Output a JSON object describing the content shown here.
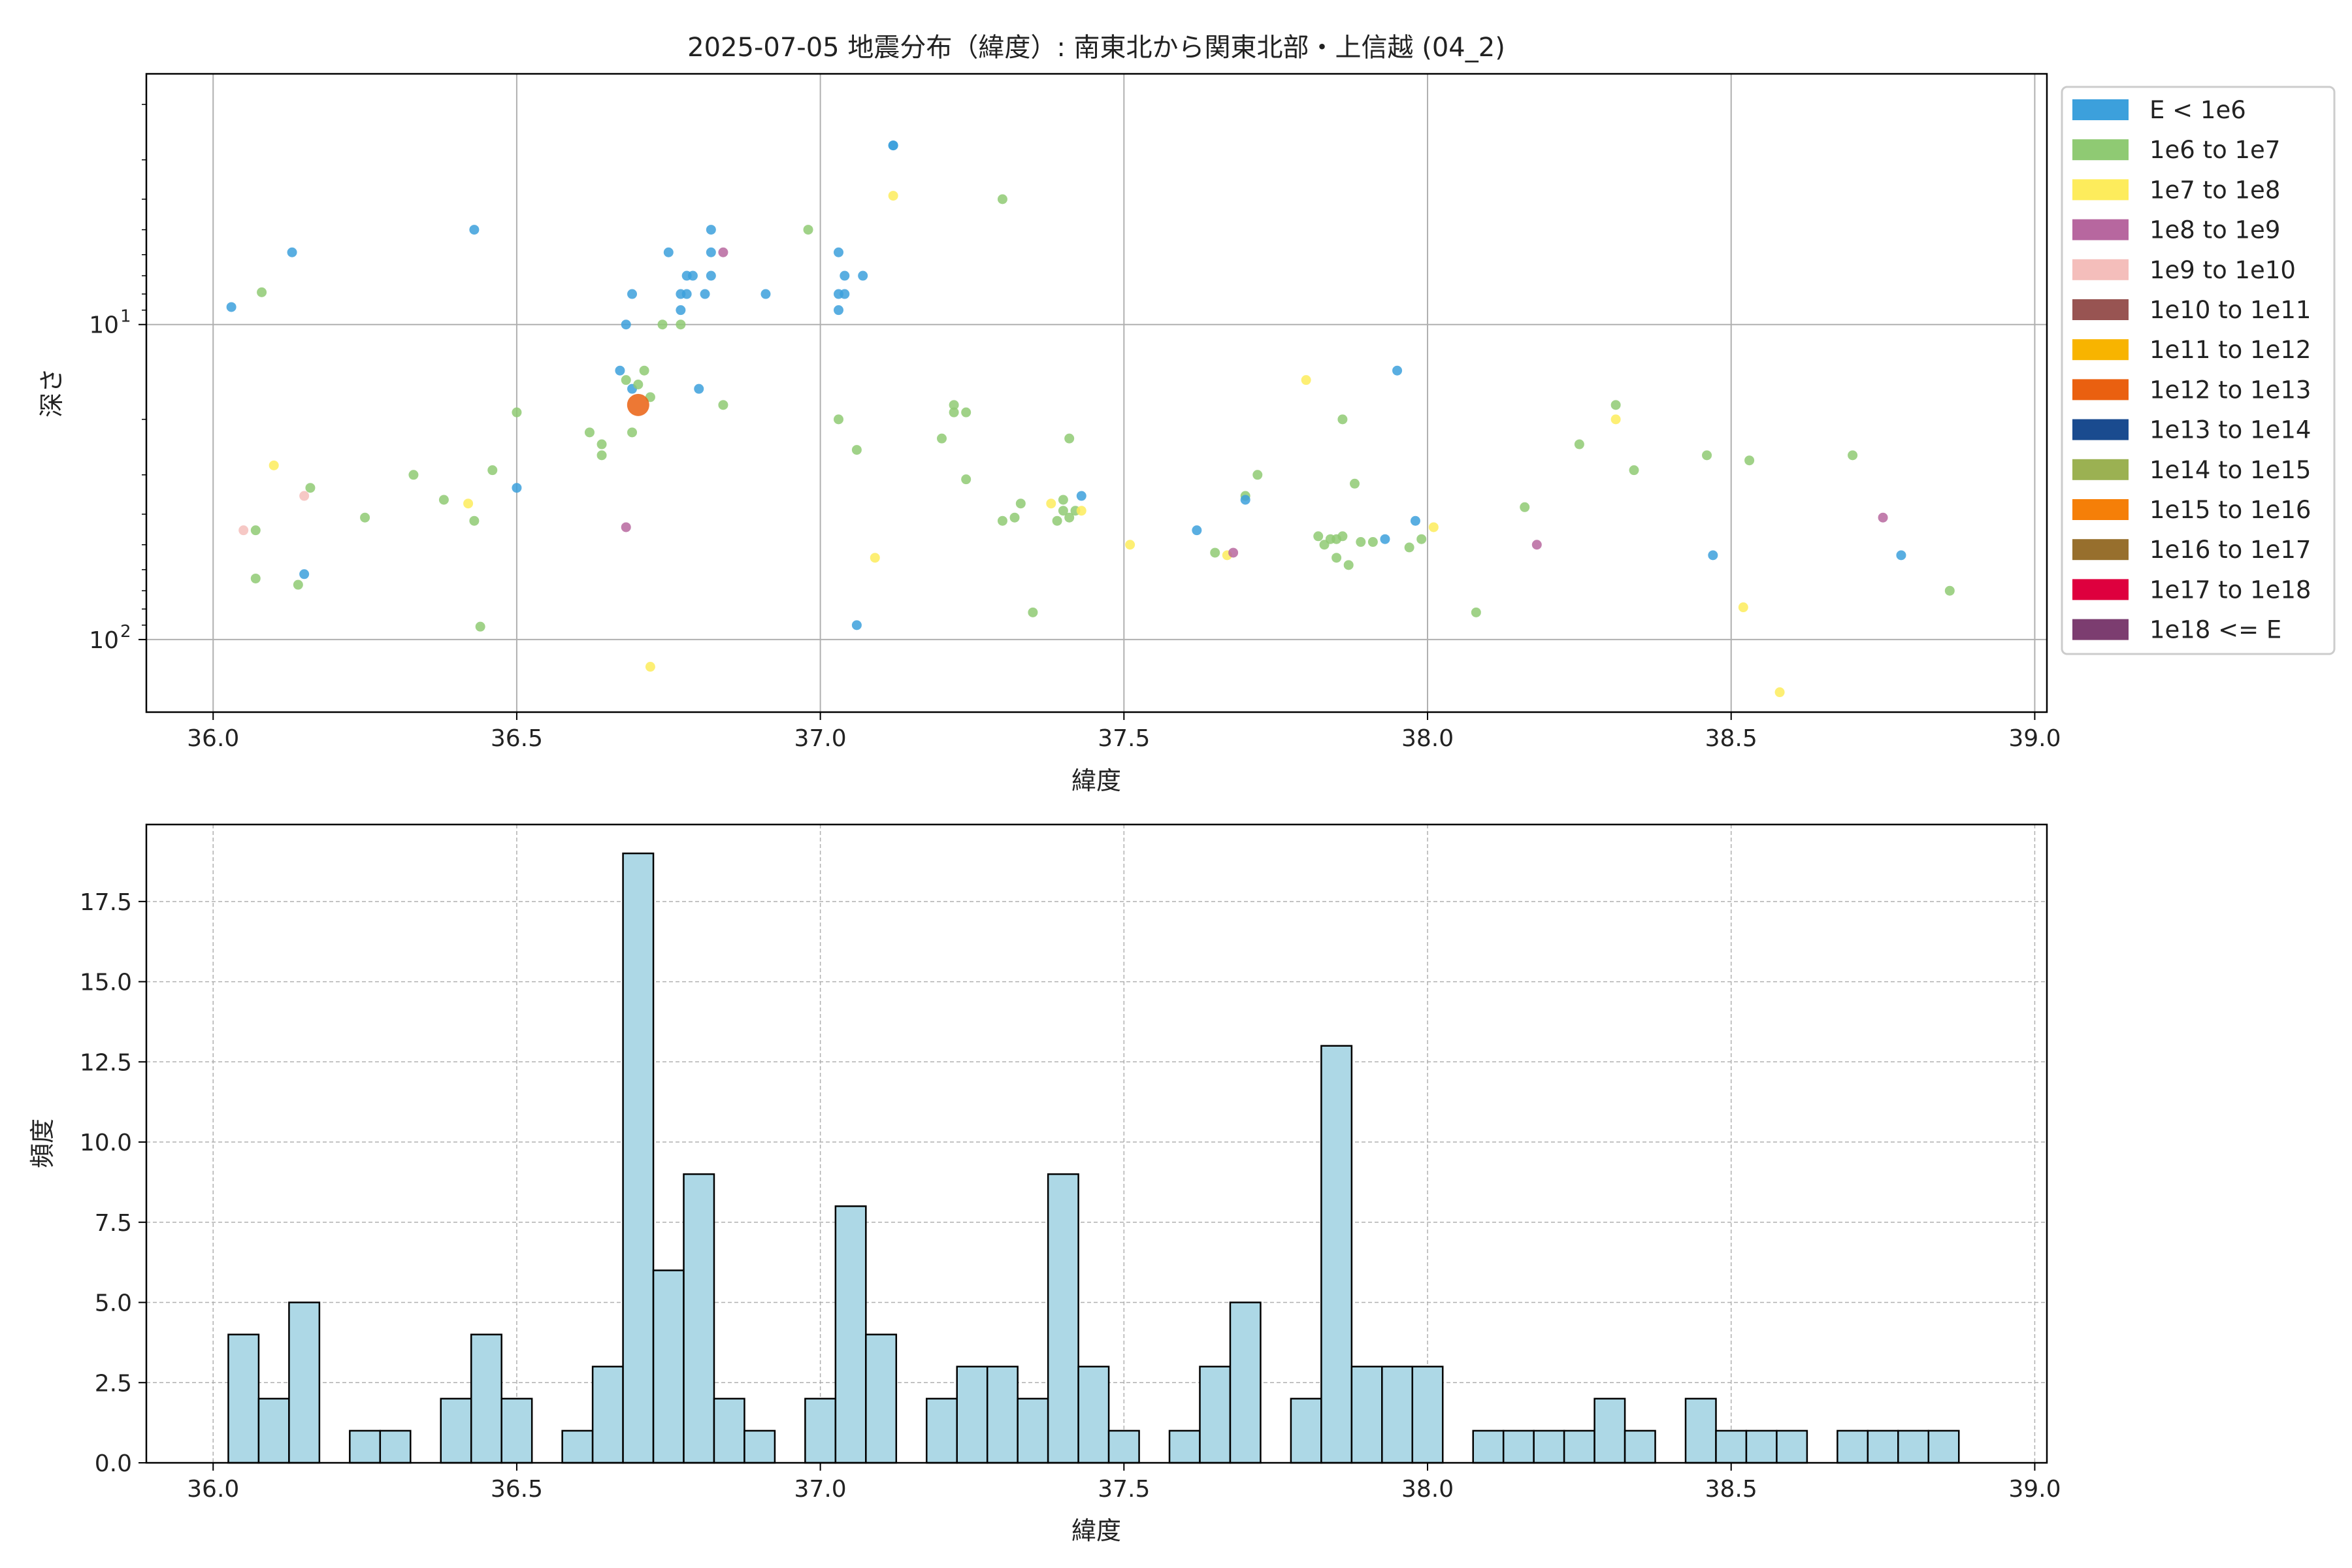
{
  "chart_data": [
    {
      "type": "scatter",
      "title": "2025-07-05 地震分布（緯度）: 南東北から関東北部・上信越 (04_2)",
      "xlabel": "緯度",
      "ylabel": "深さ",
      "xlim": [
        35.89,
        39.02
      ],
      "ylim": [
        170,
        1.6
      ],
      "yscale": "log",
      "yaxis_inverted": true,
      "grid": true,
      "xticks": [
        "36.0",
        "36.5",
        "37.0",
        "37.5",
        "38.0",
        "38.5",
        "39.0"
      ],
      "yticks": [
        {
          "value": 10,
          "label": "10",
          "exp": "1"
        },
        {
          "value": 100,
          "label": "10",
          "exp": "2"
        }
      ],
      "legend_position": "outside-right",
      "legend": [
        {
          "label": "E < 1e6",
          "color": "#3ca0dc"
        },
        {
          "label": "1e6 to 1e7",
          "color": "#8fca73"
        },
        {
          "label": "1e7 to 1e8",
          "color": "#fdec5c"
        },
        {
          "label": "1e8 to 1e9",
          "color": "#b7679f"
        },
        {
          "label": "1e9 to 1e10",
          "color": "#f4bebb"
        },
        {
          "label": "1e10 to 1e11",
          "color": "#985452"
        },
        {
          "label": "1e11 to 1e12",
          "color": "#f8b400"
        },
        {
          "label": "1e12 to 1e13",
          "color": "#ea6010"
        },
        {
          "label": "1e13 to 1e14",
          "color": "#1a4b8f"
        },
        {
          "label": "1e14 to 1e15",
          "color": "#9bb152"
        },
        {
          "label": "1e15 to 1e16",
          "color": "#f57f08"
        },
        {
          "label": "1e16 to 1e17",
          "color": "#976f2d"
        },
        {
          "label": "1e17 to 1e18",
          "color": "#de003e"
        },
        {
          "label": "1e18 <= E",
          "color": "#7c3d70"
        }
      ],
      "points": [
        {
          "x": 36.03,
          "y": 8.8,
          "c": 0
        },
        {
          "x": 36.08,
          "y": 7.9,
          "c": 1
        },
        {
          "x": 36.13,
          "y": 5.9,
          "c": 0
        },
        {
          "x": 36.1,
          "y": 28,
          "c": 2
        },
        {
          "x": 36.16,
          "y": 33,
          "c": 1
        },
        {
          "x": 36.15,
          "y": 35,
          "c": 4
        },
        {
          "x": 36.05,
          "y": 45,
          "c": 4
        },
        {
          "x": 36.07,
          "y": 45,
          "c": 1
        },
        {
          "x": 36.07,
          "y": 64,
          "c": 1
        },
        {
          "x": 36.14,
          "y": 67,
          "c": 1
        },
        {
          "x": 36.15,
          "y": 62,
          "c": 0
        },
        {
          "x": 36.25,
          "y": 41,
          "c": 1
        },
        {
          "x": 36.33,
          "y": 30,
          "c": 1
        },
        {
          "x": 36.38,
          "y": 36,
          "c": 1
        },
        {
          "x": 36.42,
          "y": 37,
          "c": 2
        },
        {
          "x": 36.43,
          "y": 42,
          "c": 1
        },
        {
          "x": 36.43,
          "y": 5.0,
          "c": 0
        },
        {
          "x": 36.44,
          "y": 91,
          "c": 1
        },
        {
          "x": 36.46,
          "y": 29,
          "c": 1
        },
        {
          "x": 36.5,
          "y": 19,
          "c": 1
        },
        {
          "x": 36.5,
          "y": 33,
          "c": 0
        },
        {
          "x": 36.62,
          "y": 22,
          "c": 1
        },
        {
          "x": 36.64,
          "y": 24,
          "c": 1
        },
        {
          "x": 36.64,
          "y": 26,
          "c": 1
        },
        {
          "x": 36.67,
          "y": 14,
          "c": 0
        },
        {
          "x": 36.68,
          "y": 15,
          "c": 1
        },
        {
          "x": 36.69,
          "y": 16,
          "c": 0
        },
        {
          "x": 36.71,
          "y": 14,
          "c": 1
        },
        {
          "x": 36.7,
          "y": 15.5,
          "c": 1
        },
        {
          "x": 36.69,
          "y": 22,
          "c": 1
        },
        {
          "x": 36.72,
          "y": 17,
          "c": 1
        },
        {
          "x": 36.7,
          "y": 18,
          "c": 7,
          "big": true
        },
        {
          "x": 36.68,
          "y": 10,
          "c": 0
        },
        {
          "x": 36.69,
          "y": 8,
          "c": 0
        },
        {
          "x": 36.68,
          "y": 44,
          "c": 3
        },
        {
          "x": 36.72,
          "y": 122,
          "c": 2
        },
        {
          "x": 36.75,
          "y": 5.9,
          "c": 0
        },
        {
          "x": 36.77,
          "y": 8.0,
          "c": 0
        },
        {
          "x": 36.78,
          "y": 7.0,
          "c": 0
        },
        {
          "x": 36.79,
          "y": 7.0,
          "c": 0
        },
        {
          "x": 36.78,
          "y": 8.0,
          "c": 0
        },
        {
          "x": 36.77,
          "y": 9.0,
          "c": 0
        },
        {
          "x": 36.74,
          "y": 10,
          "c": 1
        },
        {
          "x": 36.77,
          "y": 10,
          "c": 1
        },
        {
          "x": 36.8,
          "y": 16,
          "c": 0
        },
        {
          "x": 36.81,
          "y": 8.0,
          "c": 0
        },
        {
          "x": 36.82,
          "y": 5.0,
          "c": 0
        },
        {
          "x": 36.82,
          "y": 7.0,
          "c": 0
        },
        {
          "x": 36.82,
          "y": 5.9,
          "c": 0
        },
        {
          "x": 36.84,
          "y": 5.9,
          "c": 3
        },
        {
          "x": 36.84,
          "y": 18,
          "c": 1
        },
        {
          "x": 36.91,
          "y": 8.0,
          "c": 0
        },
        {
          "x": 36.98,
          "y": 5.0,
          "c": 1
        },
        {
          "x": 37.03,
          "y": 8.0,
          "c": 0
        },
        {
          "x": 37.04,
          "y": 8.0,
          "c": 0
        },
        {
          "x": 37.03,
          "y": 9.0,
          "c": 0
        },
        {
          "x": 37.04,
          "y": 7.0,
          "c": 0
        },
        {
          "x": 37.03,
          "y": 5.9,
          "c": 0
        },
        {
          "x": 37.07,
          "y": 7.0,
          "c": 0
        },
        {
          "x": 37.12,
          "y": 2.7,
          "c": 0
        },
        {
          "x": 37.12,
          "y": 2.7,
          "c": 0
        },
        {
          "x": 37.12,
          "y": 3.9,
          "c": 2
        },
        {
          "x": 37.03,
          "y": 20,
          "c": 1
        },
        {
          "x": 37.06,
          "y": 25,
          "c": 1
        },
        {
          "x": 37.09,
          "y": 55,
          "c": 2
        },
        {
          "x": 37.06,
          "y": 90,
          "c": 0
        },
        {
          "x": 37.2,
          "y": 23,
          "c": 1
        },
        {
          "x": 37.22,
          "y": 18,
          "c": 1
        },
        {
          "x": 37.22,
          "y": 19,
          "c": 1
        },
        {
          "x": 37.24,
          "y": 19,
          "c": 1
        },
        {
          "x": 37.24,
          "y": 31,
          "c": 1
        },
        {
          "x": 37.3,
          "y": 4.0,
          "c": 1
        },
        {
          "x": 37.3,
          "y": 42,
          "c": 1
        },
        {
          "x": 37.32,
          "y": 41,
          "c": 1
        },
        {
          "x": 37.33,
          "y": 37,
          "c": 1
        },
        {
          "x": 37.35,
          "y": 82,
          "c": 1
        },
        {
          "x": 37.38,
          "y": 37,
          "c": 2
        },
        {
          "x": 37.39,
          "y": 42,
          "c": 1
        },
        {
          "x": 37.4,
          "y": 39,
          "c": 1
        },
        {
          "x": 37.4,
          "y": 36,
          "c": 1
        },
        {
          "x": 37.41,
          "y": 41,
          "c": 1
        },
        {
          "x": 37.42,
          "y": 39,
          "c": 1
        },
        {
          "x": 37.41,
          "y": 23,
          "c": 1
        },
        {
          "x": 37.43,
          "y": 39,
          "c": 2
        },
        {
          "x": 37.43,
          "y": 35,
          "c": 0
        },
        {
          "x": 37.51,
          "y": 50,
          "c": 2
        },
        {
          "x": 37.62,
          "y": 45,
          "c": 0
        },
        {
          "x": 37.65,
          "y": 53,
          "c": 1
        },
        {
          "x": 37.67,
          "y": 54,
          "c": 2
        },
        {
          "x": 37.68,
          "y": 53,
          "c": 3
        },
        {
          "x": 37.7,
          "y": 35,
          "c": 1
        },
        {
          "x": 37.7,
          "y": 36,
          "c": 0
        },
        {
          "x": 37.72,
          "y": 30,
          "c": 1
        },
        {
          "x": 37.8,
          "y": 15,
          "c": 2
        },
        {
          "x": 37.82,
          "y": 47,
          "c": 1
        },
        {
          "x": 37.84,
          "y": 48,
          "c": 1
        },
        {
          "x": 37.85,
          "y": 48,
          "c": 1
        },
        {
          "x": 37.86,
          "y": 47,
          "c": 1
        },
        {
          "x": 37.83,
          "y": 50,
          "c": 1
        },
        {
          "x": 37.85,
          "y": 55,
          "c": 1
        },
        {
          "x": 37.87,
          "y": 58,
          "c": 1
        },
        {
          "x": 37.89,
          "y": 49,
          "c": 1
        },
        {
          "x": 37.91,
          "y": 49,
          "c": 1
        },
        {
          "x": 37.86,
          "y": 20,
          "c": 1
        },
        {
          "x": 37.88,
          "y": 32,
          "c": 1
        },
        {
          "x": 37.93,
          "y": 48,
          "c": 0
        },
        {
          "x": 37.95,
          "y": 14,
          "c": 0
        },
        {
          "x": 37.97,
          "y": 51,
          "c": 1
        },
        {
          "x": 37.98,
          "y": 42,
          "c": 0
        },
        {
          "x": 37.99,
          "y": 48,
          "c": 1
        },
        {
          "x": 38.01,
          "y": 44,
          "c": 2
        },
        {
          "x": 38.08,
          "y": 82,
          "c": 1
        },
        {
          "x": 38.16,
          "y": 38,
          "c": 1
        },
        {
          "x": 38.18,
          "y": 50,
          "c": 3
        },
        {
          "x": 38.25,
          "y": 24,
          "c": 1
        },
        {
          "x": 38.31,
          "y": 18,
          "c": 1
        },
        {
          "x": 38.31,
          "y": 20,
          "c": 2
        },
        {
          "x": 38.34,
          "y": 29,
          "c": 1
        },
        {
          "x": 38.46,
          "y": 26,
          "c": 1
        },
        {
          "x": 38.47,
          "y": 54,
          "c": 0
        },
        {
          "x": 38.52,
          "y": 79,
          "c": 2
        },
        {
          "x": 38.53,
          "y": 27,
          "c": 1
        },
        {
          "x": 38.58,
          "y": 147,
          "c": 2
        },
        {
          "x": 38.7,
          "y": 26,
          "c": 1
        },
        {
          "x": 38.75,
          "y": 41,
          "c": 3
        },
        {
          "x": 38.78,
          "y": 54,
          "c": 0
        },
        {
          "x": 38.86,
          "y": 70,
          "c": 1
        }
      ]
    },
    {
      "type": "bar",
      "subtype": "histogram",
      "xlabel": "緯度",
      "ylabel": "頻度",
      "xlim": [
        35.89,
        39.02
      ],
      "ylim": [
        0,
        19.9
      ],
      "grid": true,
      "bar_color": "#add8e6",
      "edge_color": "#000000",
      "xticks": [
        "36.0",
        "36.5",
        "37.0",
        "37.5",
        "38.0",
        "38.5",
        "39.0"
      ],
      "yticks": [
        "0.0",
        "2.5",
        "5.0",
        "7.5",
        "10.0",
        "12.5",
        "15.0",
        "17.5"
      ],
      "bin_start": 36.025,
      "bin_width": 0.05,
      "values": [
        4,
        2,
        5,
        0,
        1,
        1,
        0,
        2,
        4,
        2,
        0,
        1,
        3,
        19,
        6,
        9,
        2,
        1,
        0,
        2,
        8,
        4,
        0,
        2,
        3,
        3,
        2,
        9,
        3,
        1,
        0,
        1,
        3,
        5,
        0,
        2,
        13,
        3,
        3,
        3,
        0,
        1,
        1,
        1,
        1,
        2,
        1,
        0,
        2,
        1,
        1,
        1,
        0,
        1,
        1,
        1,
        1
      ]
    }
  ]
}
